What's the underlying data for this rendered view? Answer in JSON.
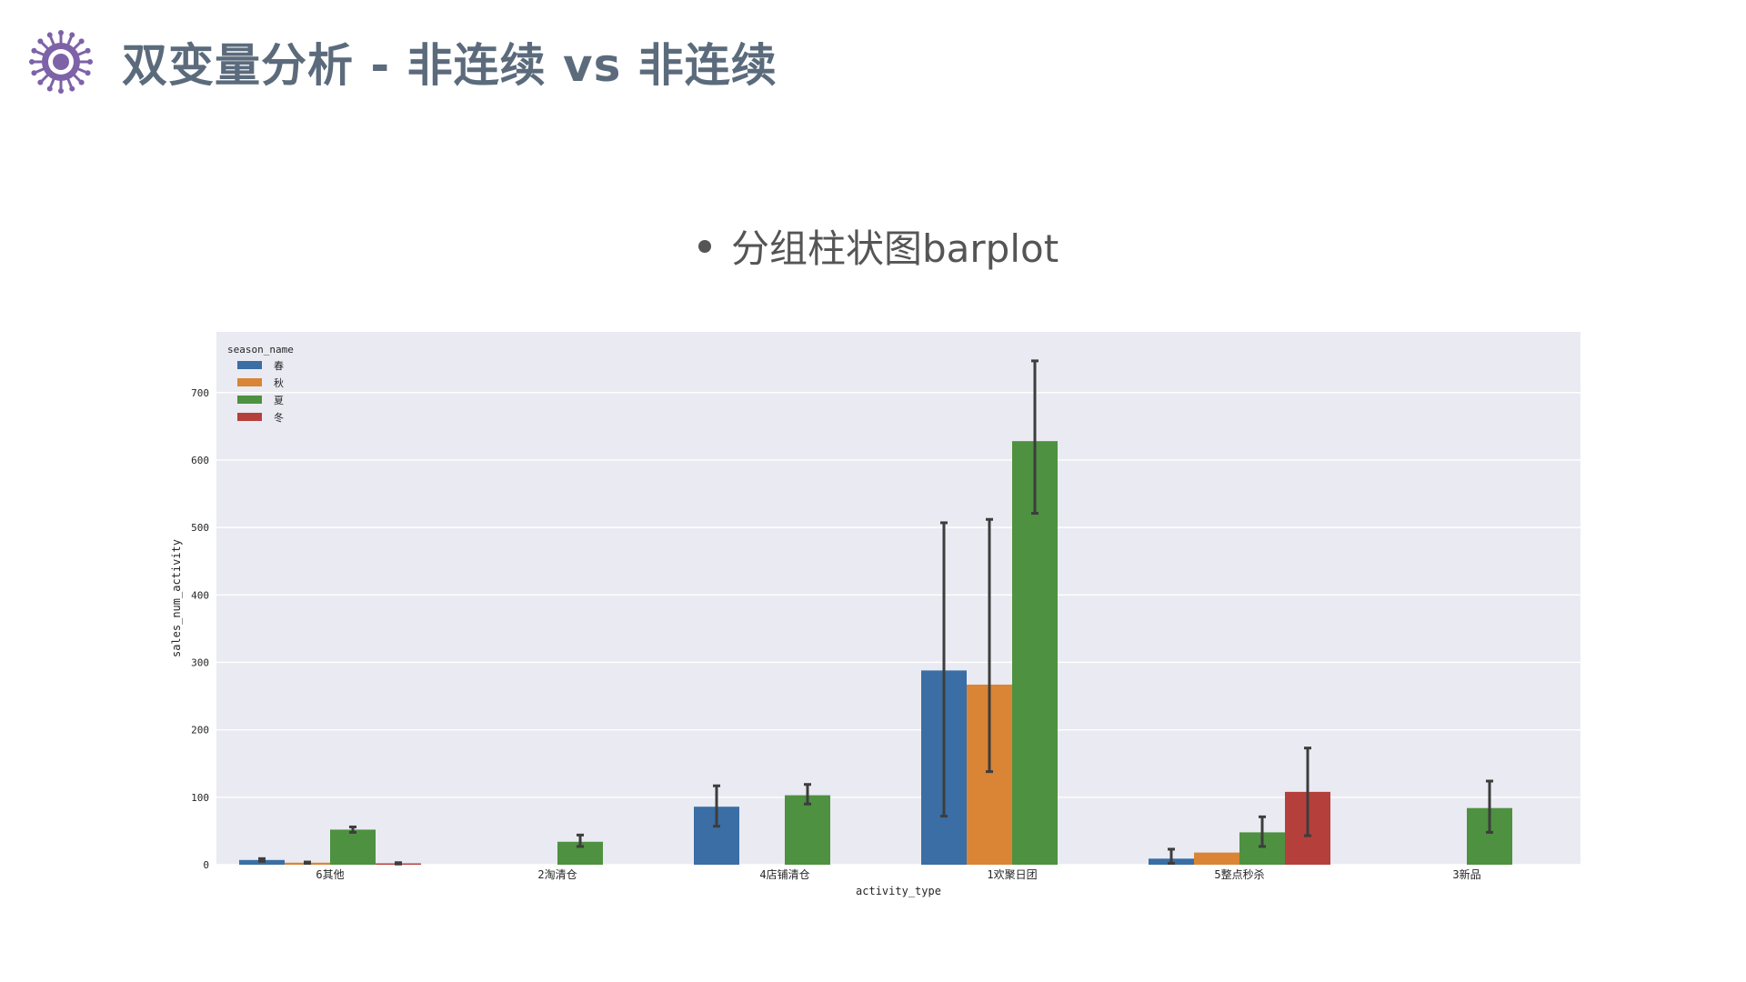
{
  "slide": {
    "title": "双变量分析 - 非连续 vs 非连续",
    "bullet": "分组柱状图barplot",
    "icon": "virus-icon",
    "icon_color": "#7e62a8",
    "title_color": "#5b6b7c"
  },
  "chart_data": {
    "type": "bar",
    "title": "",
    "xlabel": "activity_type",
    "ylabel": "sales_num_activity",
    "ylim": [
      0,
      790
    ],
    "yticks": [
      0,
      100,
      200,
      300,
      400,
      500,
      600,
      700
    ],
    "grid": true,
    "background": "#eaeaf2",
    "legend": {
      "title": "season_name",
      "placement": "top-left"
    },
    "categories": [
      "6其他",
      "2淘清仓",
      "4店铺清仓",
      "1欢聚日团",
      "5整点秒杀",
      "3新品"
    ],
    "series": [
      {
        "name": "春",
        "color": "#3a6ea5",
        "values": [
          7,
          null,
          86,
          288,
          9,
          null
        ],
        "ci": [
          [
            5,
            9
          ],
          null,
          [
            57,
            117
          ],
          [
            72,
            507
          ],
          [
            2,
            23
          ],
          null
        ]
      },
      {
        "name": "秋",
        "color": "#d98535",
        "values": [
          3,
          null,
          null,
          267,
          18,
          null
        ],
        "ci": [
          [
            2,
            4
          ],
          null,
          null,
          [
            138,
            512
          ],
          null,
          null
        ]
      },
      {
        "name": "夏",
        "color": "#4e9140",
        "values": [
          52,
          34,
          103,
          628,
          48,
          84
        ],
        "ci": [
          [
            48,
            56
          ],
          [
            27,
            44
          ],
          [
            90,
            119
          ],
          [
            521,
            747
          ],
          [
            27,
            71
          ],
          [
            48,
            124
          ]
        ]
      },
      {
        "name": "冬",
        "color": "#b5403b",
        "values": [
          2,
          null,
          null,
          null,
          108,
          null
        ],
        "ci": [
          [
            1,
            3
          ],
          null,
          null,
          null,
          [
            43,
            173
          ],
          null
        ]
      }
    ]
  }
}
